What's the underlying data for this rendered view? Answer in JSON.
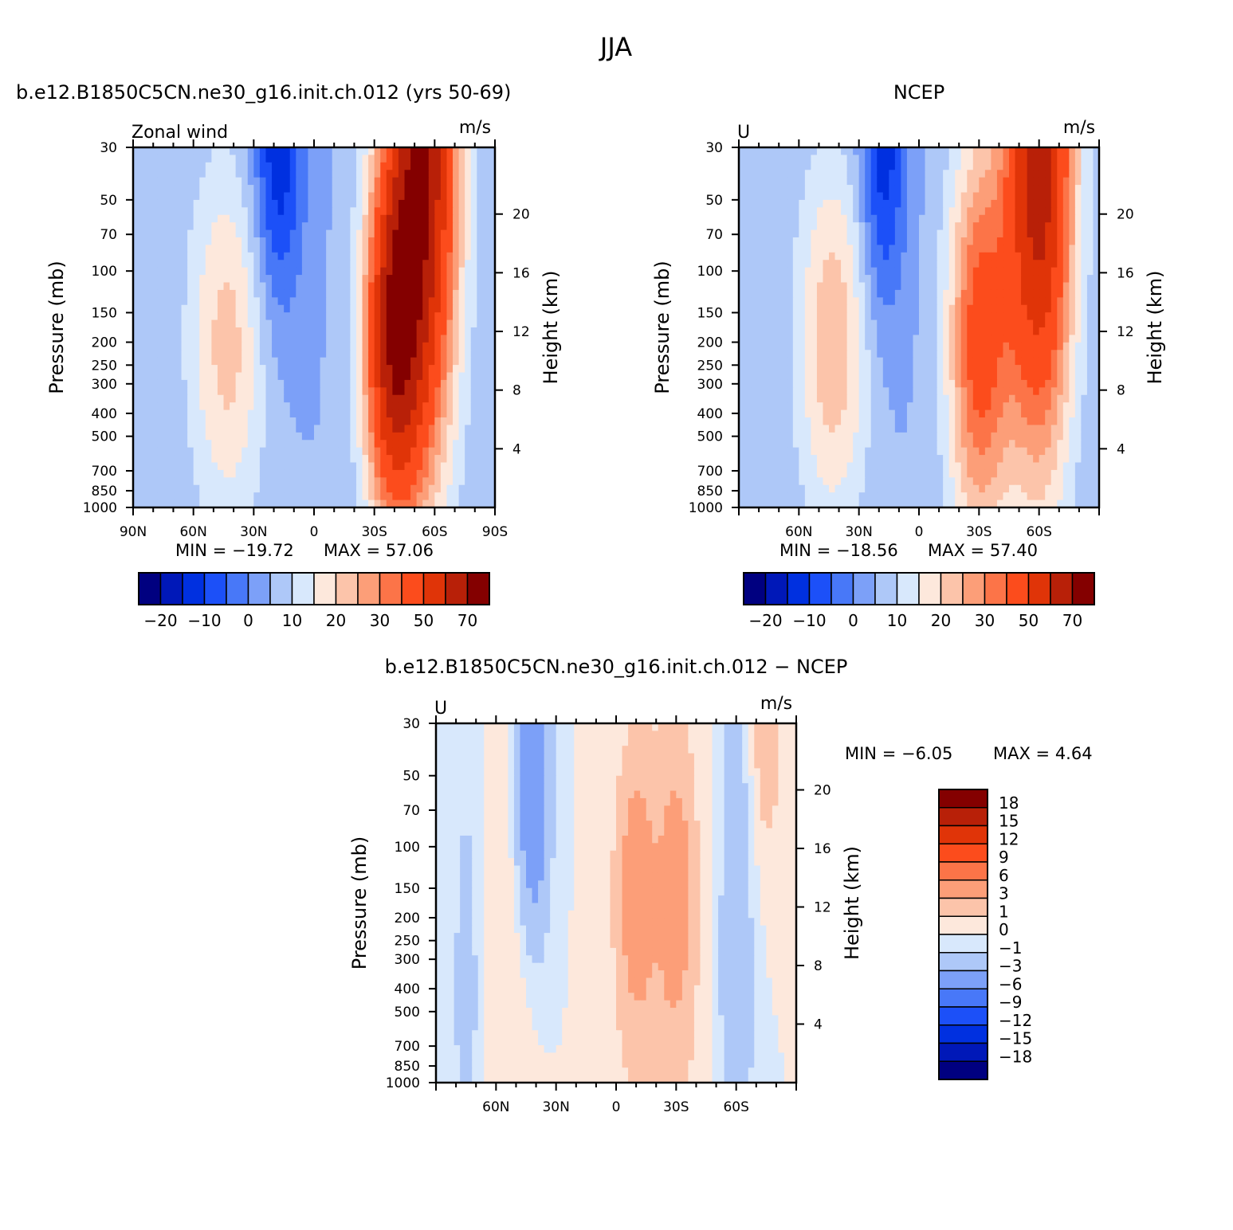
{
  "title": "JJA",
  "palette": [
    "#000080",
    "#0018b8",
    "#0030e0",
    "#1c50f8",
    "#4878f8",
    "#7ca0f8",
    "#aec8f8",
    "#d8e8fc",
    "#fde8dc",
    "#fcc4aa",
    "#fc9e78",
    "#fc7448",
    "#fc4c1c",
    "#e03408",
    "#b82008",
    "#840000"
  ],
  "chart_data": [
    {
      "id": "model",
      "type": "heatmap",
      "title": "b.e12.B1850C5CN.ne30_g16.init.ch.012 (yrs 50-69)",
      "left_label": "Zonal wind",
      "units": "m/s",
      "ylabel": "Pressure (mb)",
      "y2label": "Height (km)",
      "ylim": [
        1000,
        30
      ],
      "y_ticks": [
        "30",
        "50",
        "70",
        "100",
        "150",
        "200",
        "250",
        "300",
        "400",
        "500",
        "700",
        "850",
        "1000"
      ],
      "y_tick_values": [
        30,
        50,
        70,
        100,
        150,
        200,
        250,
        300,
        400,
        500,
        700,
        850,
        1000
      ],
      "height_ticks": [
        "20",
        "16",
        "12",
        "8",
        "4"
      ],
      "height_tick_values": [
        20,
        16,
        12,
        8,
        4
      ],
      "x_ticks": [
        "90N",
        "60N",
        "30N",
        "0",
        "30S",
        "60S",
        "90S"
      ],
      "x_tick_values": [
        90,
        60,
        30,
        0,
        -30,
        -60,
        -90
      ],
      "xlim": [
        90,
        -90
      ],
      "min_label": "MIN =  −19.72",
      "max_label": "MAX =   57.06",
      "min": -19.72,
      "max": 57.06,
      "legend_labels": [
        "−20",
        "−10",
        "0",
        "10",
        "20",
        "30",
        "50",
        "70"
      ],
      "levels": [
        -25,
        -20,
        -15,
        -10,
        -5,
        0,
        5,
        10,
        15,
        20,
        25,
        30,
        40,
        50,
        60,
        70
      ],
      "features": [
        {
          "kind": "jet",
          "lat": -39,
          "p": 200,
          "peak": 50,
          "lat_w": 10,
          "logp_w": 0.55
        },
        {
          "kind": "jet",
          "lat": -55,
          "p": 30,
          "peak": 57,
          "lat_w": 12,
          "logp_w": 0.9
        },
        {
          "kind": "jet",
          "lat": 43,
          "p": 200,
          "peak": 17,
          "lat_w": 14,
          "logp_w": 0.55
        },
        {
          "kind": "jet",
          "lat": 18,
          "p": 30,
          "peak": -19.7,
          "lat_w": 9,
          "logp_w": 0.5
        }
      ]
    },
    {
      "id": "ncep",
      "type": "heatmap",
      "title": "NCEP",
      "left_label": "U",
      "units": "m/s",
      "ylabel": "Pressure (mb)",
      "y2label": "Height (km)",
      "ylim": [
        1000,
        30
      ],
      "y_ticks": [
        "30",
        "50",
        "70",
        "100",
        "150",
        "200",
        "250",
        "300",
        "400",
        "500",
        "700",
        "850",
        "1000"
      ],
      "y_tick_values": [
        30,
        50,
        70,
        100,
        150,
        200,
        250,
        300,
        400,
        500,
        700,
        850,
        1000
      ],
      "height_ticks": [
        "20",
        "16",
        "12",
        "8",
        "4"
      ],
      "height_tick_values": [
        20,
        16,
        12,
        8,
        4
      ],
      "x_ticks": [
        "60N",
        "30N",
        "0",
        "30S",
        "60S"
      ],
      "x_tick_values": [
        60,
        30,
        0,
        -30,
        -60
      ],
      "xlim": [
        90,
        -90
      ],
      "min_label": "MIN =  −18.56",
      "max_label": "MAX =   57.40",
      "min": -18.56,
      "max": 57.4,
      "legend_labels": [
        "−20",
        "−10",
        "0",
        "10",
        "20",
        "30",
        "50",
        "70"
      ],
      "levels": [
        -25,
        -20,
        -15,
        -10,
        -5,
        0,
        5,
        10,
        15,
        20,
        25,
        30,
        40,
        50,
        60,
        70
      ],
      "features": [
        {
          "kind": "jet",
          "lat": -30,
          "p": 200,
          "peak": 33,
          "lat_w": 11,
          "logp_w": 0.6
        },
        {
          "kind": "jet",
          "lat": -60,
          "p": 30,
          "peak": 57,
          "lat_w": 12,
          "logp_w": 0.9
        },
        {
          "kind": "jet",
          "lat": 43,
          "p": 200,
          "peak": 19,
          "lat_w": 13,
          "logp_w": 0.55
        },
        {
          "kind": "jet",
          "lat": 18,
          "p": 30,
          "peak": -18.6,
          "lat_w": 8,
          "logp_w": 0.5
        }
      ]
    },
    {
      "id": "diff",
      "type": "heatmap",
      "title": "b.e12.B1850C5CN.ne30_g16.init.ch.012 − NCEP",
      "left_label": "U",
      "units": "m/s",
      "ylabel": "Pressure (mb)",
      "y2label": "Height (km)",
      "ylim": [
        1000,
        30
      ],
      "y_ticks": [
        "30",
        "50",
        "70",
        "100",
        "150",
        "200",
        "250",
        "300",
        "400",
        "500",
        "700",
        "850",
        "1000"
      ],
      "y_tick_values": [
        30,
        50,
        70,
        100,
        150,
        200,
        250,
        300,
        400,
        500,
        700,
        850,
        1000
      ],
      "height_ticks": [
        "20",
        "16",
        "12",
        "8",
        "4"
      ],
      "height_tick_values": [
        20,
        16,
        12,
        8,
        4
      ],
      "x_ticks": [
        "60N",
        "30N",
        "0",
        "30S",
        "60S"
      ],
      "x_tick_values": [
        60,
        30,
        0,
        -30,
        -60
      ],
      "xlim": [
        90,
        -90
      ],
      "min_label": "MIN =   −6.05",
      "max_label": "MAX =    4.64",
      "min": -6.05,
      "max": 4.64,
      "legend_labels": [
        "18",
        "15",
        "12",
        "9",
        "6",
        "3",
        "1",
        "0",
        "−1",
        "−3",
        "−6",
        "−9",
        "−12",
        "−15",
        "−18"
      ],
      "levels": [
        -18,
        -15,
        -12,
        -9,
        -6,
        -3,
        -1,
        0,
        1,
        3,
        6,
        9,
        12,
        15,
        18
      ],
      "features": [
        {
          "kind": "jet",
          "lat": -10,
          "p": 150,
          "peak": 4.6,
          "lat_w": 6,
          "logp_w": 0.35
        },
        {
          "kind": "jet",
          "lat": -30,
          "p": 150,
          "peak": 4.0,
          "lat_w": 6,
          "logp_w": 0.4
        },
        {
          "kind": "jet",
          "lat": -20,
          "p": 400,
          "peak": 1.5,
          "lat_w": 14,
          "logp_w": 0.8
        },
        {
          "kind": "jet",
          "lat": 42,
          "p": 60,
          "peak": -6.05,
          "lat_w": 6,
          "logp_w": 0.45
        },
        {
          "kind": "jet",
          "lat": -60,
          "p": 300,
          "peak": -2.5,
          "lat_w": 6,
          "logp_w": 0.9
        },
        {
          "kind": "jet",
          "lat": 50,
          "p": 200,
          "peak": 1.2,
          "lat_w": 8,
          "logp_w": 0.9
        },
        {
          "kind": "jet",
          "lat": 75,
          "p": 400,
          "peak": -1.6,
          "lat_w": 5,
          "logp_w": 0.7
        },
        {
          "kind": "jet",
          "lat": -75,
          "p": 30,
          "peak": 2.0,
          "lat_w": 6,
          "logp_w": 0.4
        }
      ]
    }
  ]
}
